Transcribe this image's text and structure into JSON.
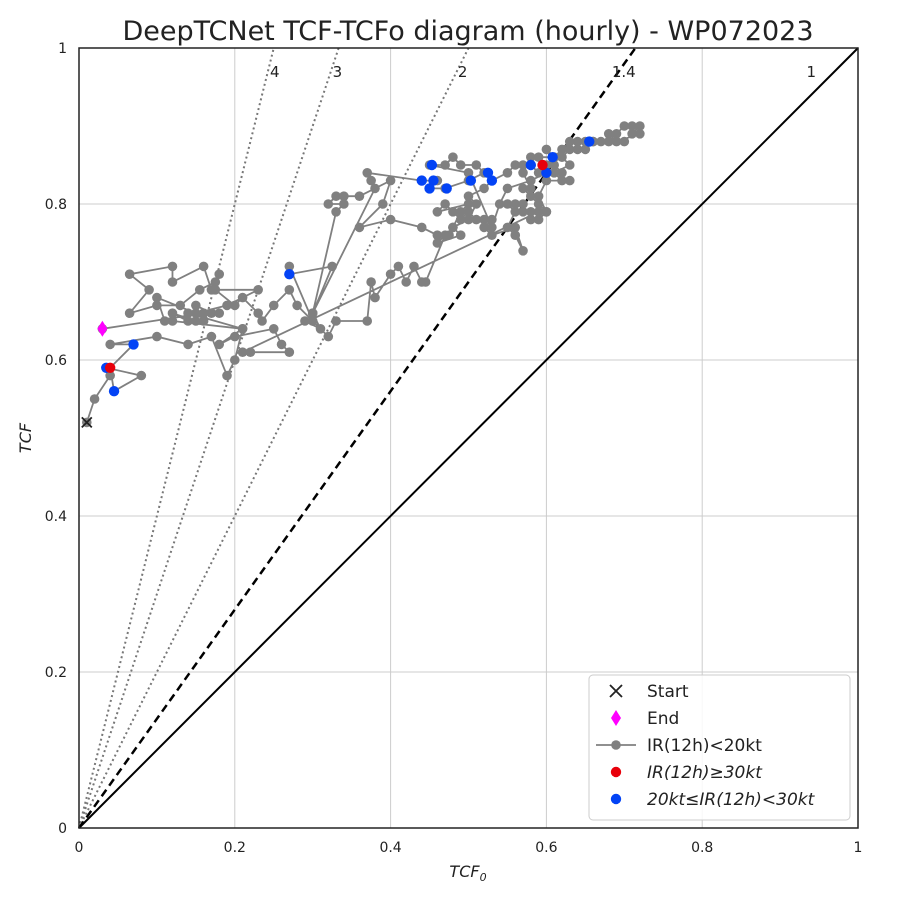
{
  "chart_data": {
    "type": "scatter",
    "title": "DeepTCNet TCF-TCFo diagram (hourly) - WP072023",
    "xlabel": "TCF",
    "xlabel_sub": "0",
    "ylabel": "TCF",
    "xlim": [
      0,
      1
    ],
    "ylim": [
      0,
      1
    ],
    "x_ticks": [
      "0",
      "0.2",
      "0.4",
      "0.6",
      "0.8",
      "1"
    ],
    "y_ticks": [
      "0",
      "0.2",
      "0.4",
      "0.6",
      "0.8",
      "1"
    ],
    "grid": true,
    "legend_position": "lower-right",
    "ratio_lines": [
      {
        "ratio": 4,
        "label": "4",
        "style": "dotted"
      },
      {
        "ratio": 3,
        "label": "3",
        "style": "dotted"
      },
      {
        "ratio": 2,
        "label": "2",
        "style": "dotted"
      },
      {
        "ratio": 1.4,
        "label": "1.4",
        "style": "dashed"
      },
      {
        "ratio": 1,
        "label": "1",
        "style": "solid"
      }
    ],
    "colors": {
      "track": "#808080",
      "start": "#222222",
      "end": "#ff00ff",
      "rapid": "#e8000b",
      "moderate": "#0343f5",
      "grid": "#cccccc",
      "ratio": "#777777"
    },
    "legend": [
      {
        "key": "start",
        "label": "Start"
      },
      {
        "key": "end",
        "label": "End"
      },
      {
        "key": "track",
        "label": "IR(12h)<20kt"
      },
      {
        "key": "rapid",
        "label": "IR(12h)≥30kt"
      },
      {
        "key": "moderate",
        "label": "20kt≤IR(12h)<30kt"
      }
    ],
    "track": [
      [
        0.01,
        0.52
      ],
      [
        0.02,
        0.55
      ],
      [
        0.04,
        0.58
      ],
      [
        0.035,
        0.59
      ],
      [
        0.08,
        0.58
      ],
      [
        0.045,
        0.56
      ],
      [
        0.04,
        0.59
      ],
      [
        0.07,
        0.62
      ],
      [
        0.04,
        0.62
      ],
      [
        0.1,
        0.63
      ],
      [
        0.14,
        0.62
      ],
      [
        0.17,
        0.63
      ],
      [
        0.19,
        0.58
      ],
      [
        0.2,
        0.6
      ],
      [
        0.21,
        0.64
      ],
      [
        0.12,
        0.65
      ],
      [
        0.11,
        0.65
      ],
      [
        0.1,
        0.68
      ],
      [
        0.15,
        0.66
      ],
      [
        0.19,
        0.67
      ],
      [
        0.23,
        0.69
      ],
      [
        0.17,
        0.69
      ],
      [
        0.16,
        0.72
      ],
      [
        0.12,
        0.7
      ],
      [
        0.12,
        0.72
      ],
      [
        0.065,
        0.71
      ],
      [
        0.09,
        0.69
      ],
      [
        0.065,
        0.66
      ],
      [
        0.1,
        0.67
      ],
      [
        0.13,
        0.67
      ],
      [
        0.155,
        0.69
      ],
      [
        0.175,
        0.7
      ],
      [
        0.18,
        0.71
      ],
      [
        0.175,
        0.69
      ],
      [
        0.2,
        0.67
      ],
      [
        0.21,
        0.68
      ],
      [
        0.23,
        0.66
      ],
      [
        0.235,
        0.65
      ],
      [
        0.25,
        0.67
      ],
      [
        0.27,
        0.69
      ],
      [
        0.28,
        0.67
      ],
      [
        0.3,
        0.65
      ],
      [
        0.29,
        0.65
      ],
      [
        0.31,
        0.64
      ],
      [
        0.3,
        0.66
      ],
      [
        0.325,
        0.72
      ],
      [
        0.27,
        0.71
      ],
      [
        0.27,
        0.72
      ],
      [
        0.3,
        0.65
      ],
      [
        0.32,
        0.63
      ],
      [
        0.33,
        0.65
      ],
      [
        0.37,
        0.65
      ],
      [
        0.375,
        0.7
      ],
      [
        0.38,
        0.68
      ],
      [
        0.4,
        0.71
      ],
      [
        0.41,
        0.72
      ],
      [
        0.42,
        0.7
      ],
      [
        0.43,
        0.72
      ],
      [
        0.44,
        0.7
      ],
      [
        0.445,
        0.7
      ],
      [
        0.47,
        0.76
      ],
      [
        0.46,
        0.75
      ],
      [
        0.49,
        0.76
      ],
      [
        0.48,
        0.77
      ],
      [
        0.5,
        0.78
      ],
      [
        0.51,
        0.8
      ],
      [
        0.5,
        0.81
      ],
      [
        0.52,
        0.82
      ],
      [
        0.53,
        0.83
      ],
      [
        0.55,
        0.84
      ],
      [
        0.56,
        0.85
      ],
      [
        0.57,
        0.85
      ],
      [
        0.58,
        0.85
      ],
      [
        0.59,
        0.84
      ],
      [
        0.6,
        0.85
      ],
      [
        0.61,
        0.86
      ],
      [
        0.62,
        0.87
      ],
      [
        0.63,
        0.88
      ],
      [
        0.64,
        0.88
      ],
      [
        0.65,
        0.88
      ],
      [
        0.66,
        0.88
      ],
      [
        0.67,
        0.88
      ],
      [
        0.68,
        0.88
      ],
      [
        0.69,
        0.89
      ],
      [
        0.7,
        0.9
      ],
      [
        0.71,
        0.9
      ],
      [
        0.72,
        0.9
      ],
      [
        0.71,
        0.89
      ],
      [
        0.72,
        0.89
      ],
      [
        0.69,
        0.88
      ],
      [
        0.68,
        0.89
      ],
      [
        0.7,
        0.88
      ],
      [
        0.66,
        0.88
      ],
      [
        0.65,
        0.87
      ],
      [
        0.64,
        0.87
      ],
      [
        0.63,
        0.87
      ],
      [
        0.62,
        0.86
      ],
      [
        0.63,
        0.85
      ],
      [
        0.61,
        0.84
      ],
      [
        0.62,
        0.83
      ],
      [
        0.63,
        0.83
      ],
      [
        0.6,
        0.83
      ],
      [
        0.59,
        0.81
      ],
      [
        0.6,
        0.79
      ],
      [
        0.59,
        0.78
      ],
      [
        0.58,
        0.78
      ],
      [
        0.58,
        0.79
      ],
      [
        0.57,
        0.79
      ],
      [
        0.57,
        0.8
      ],
      [
        0.56,
        0.8
      ],
      [
        0.55,
        0.8
      ],
      [
        0.56,
        0.79
      ],
      [
        0.55,
        0.77
      ],
      [
        0.56,
        0.76
      ],
      [
        0.57,
        0.74
      ],
      [
        0.56,
        0.77
      ],
      [
        0.53,
        0.76
      ],
      [
        0.52,
        0.77
      ],
      [
        0.53,
        0.78
      ],
      [
        0.52,
        0.78
      ],
      [
        0.51,
        0.78
      ],
      [
        0.5,
        0.79
      ],
      [
        0.49,
        0.78
      ],
      [
        0.48,
        0.79
      ],
      [
        0.47,
        0.8
      ],
      [
        0.46,
        0.79
      ],
      [
        0.5,
        0.8
      ],
      [
        0.49,
        0.79
      ],
      [
        0.48,
        0.77
      ],
      [
        0.475,
        0.76
      ],
      [
        0.46,
        0.76
      ],
      [
        0.44,
        0.77
      ],
      [
        0.4,
        0.78
      ],
      [
        0.36,
        0.77
      ],
      [
        0.39,
        0.8
      ],
      [
        0.4,
        0.83
      ],
      [
        0.36,
        0.81
      ],
      [
        0.34,
        0.81
      ],
      [
        0.33,
        0.81
      ],
      [
        0.32,
        0.8
      ],
      [
        0.34,
        0.8
      ],
      [
        0.33,
        0.79
      ],
      [
        0.3,
        0.66
      ],
      [
        0.38,
        0.82
      ],
      [
        0.375,
        0.83
      ],
      [
        0.37,
        0.84
      ],
      [
        0.44,
        0.83
      ],
      [
        0.46,
        0.83
      ],
      [
        0.45,
        0.82
      ],
      [
        0.47,
        0.82
      ],
      [
        0.5,
        0.83
      ],
      [
        0.52,
        0.84
      ],
      [
        0.53,
        0.83
      ],
      [
        0.51,
        0.85
      ],
      [
        0.49,
        0.85
      ],
      [
        0.48,
        0.86
      ],
      [
        0.47,
        0.85
      ],
      [
        0.45,
        0.85
      ],
      [
        0.5,
        0.84
      ],
      [
        0.53,
        0.77
      ],
      [
        0.54,
        0.8
      ],
      [
        0.55,
        0.82
      ],
      [
        0.58,
        0.83
      ],
      [
        0.6,
        0.84
      ],
      [
        0.62,
        0.84
      ],
      [
        0.61,
        0.85
      ],
      [
        0.6,
        0.87
      ],
      [
        0.61,
        0.86
      ],
      [
        0.59,
        0.86
      ],
      [
        0.58,
        0.86
      ],
      [
        0.57,
        0.84
      ],
      [
        0.58,
        0.82
      ],
      [
        0.57,
        0.82
      ],
      [
        0.58,
        0.81
      ],
      [
        0.59,
        0.8
      ],
      [
        0.6,
        0.79
      ],
      [
        0.59,
        0.79
      ],
      [
        0.21,
        0.61
      ],
      [
        0.22,
        0.61
      ],
      [
        0.27,
        0.61
      ],
      [
        0.26,
        0.62
      ],
      [
        0.25,
        0.64
      ],
      [
        0.2,
        0.63
      ],
      [
        0.18,
        0.62
      ],
      [
        0.21,
        0.64
      ],
      [
        0.14,
        0.66
      ],
      [
        0.14,
        0.65
      ],
      [
        0.12,
        0.66
      ],
      [
        0.15,
        0.65
      ],
      [
        0.16,
        0.65
      ],
      [
        0.15,
        0.67
      ],
      [
        0.17,
        0.66
      ],
      [
        0.18,
        0.66
      ],
      [
        0.16,
        0.66
      ],
      [
        0.03,
        0.64
      ]
    ],
    "rapid_points": [
      [
        0.04,
        0.59
      ],
      [
        0.595,
        0.85
      ]
    ],
    "moderate_points": [
      [
        0.035,
        0.59
      ],
      [
        0.045,
        0.56
      ],
      [
        0.07,
        0.62
      ],
      [
        0.27,
        0.71
      ],
      [
        0.44,
        0.83
      ],
      [
        0.455,
        0.83
      ],
      [
        0.45,
        0.82
      ],
      [
        0.453,
        0.85
      ],
      [
        0.472,
        0.82
      ],
      [
        0.503,
        0.83
      ],
      [
        0.525,
        0.84
      ],
      [
        0.53,
        0.83
      ],
      [
        0.58,
        0.85
      ],
      [
        0.6,
        0.84
      ],
      [
        0.608,
        0.86
      ],
      [
        0.655,
        0.88
      ]
    ],
    "start": [
      0.01,
      0.52
    ],
    "end": [
      0.03,
      0.64
    ]
  }
}
